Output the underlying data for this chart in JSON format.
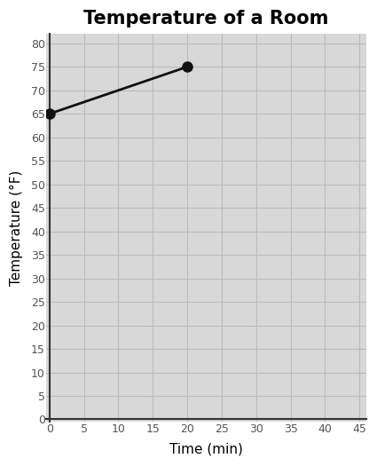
{
  "title": "Temperature of a Room",
  "xlabel": "Time (min)",
  "ylabel": "Temperature (°F)",
  "x_data": [
    0,
    20
  ],
  "y_data": [
    65,
    75
  ],
  "xlim": [
    0,
    45
  ],
  "ylim": [
    0,
    80
  ],
  "x_ticks": [
    0,
    5,
    10,
    15,
    20,
    25,
    30,
    35,
    40,
    45
  ],
  "y_ticks": [
    0,
    5,
    10,
    15,
    20,
    25,
    30,
    35,
    40,
    45,
    50,
    55,
    60,
    65,
    70,
    75,
    80
  ],
  "line_color": "#111111",
  "marker_color": "#111111",
  "marker_size": 8,
  "line_width": 2,
  "grid_color": "#bbbbbb",
  "plot_bg_color": "#d8d8d8",
  "fig_bg_color": "#ffffff",
  "title_fontsize": 15,
  "label_fontsize": 11,
  "tick_fontsize": 9,
  "tick_color": "#555555"
}
